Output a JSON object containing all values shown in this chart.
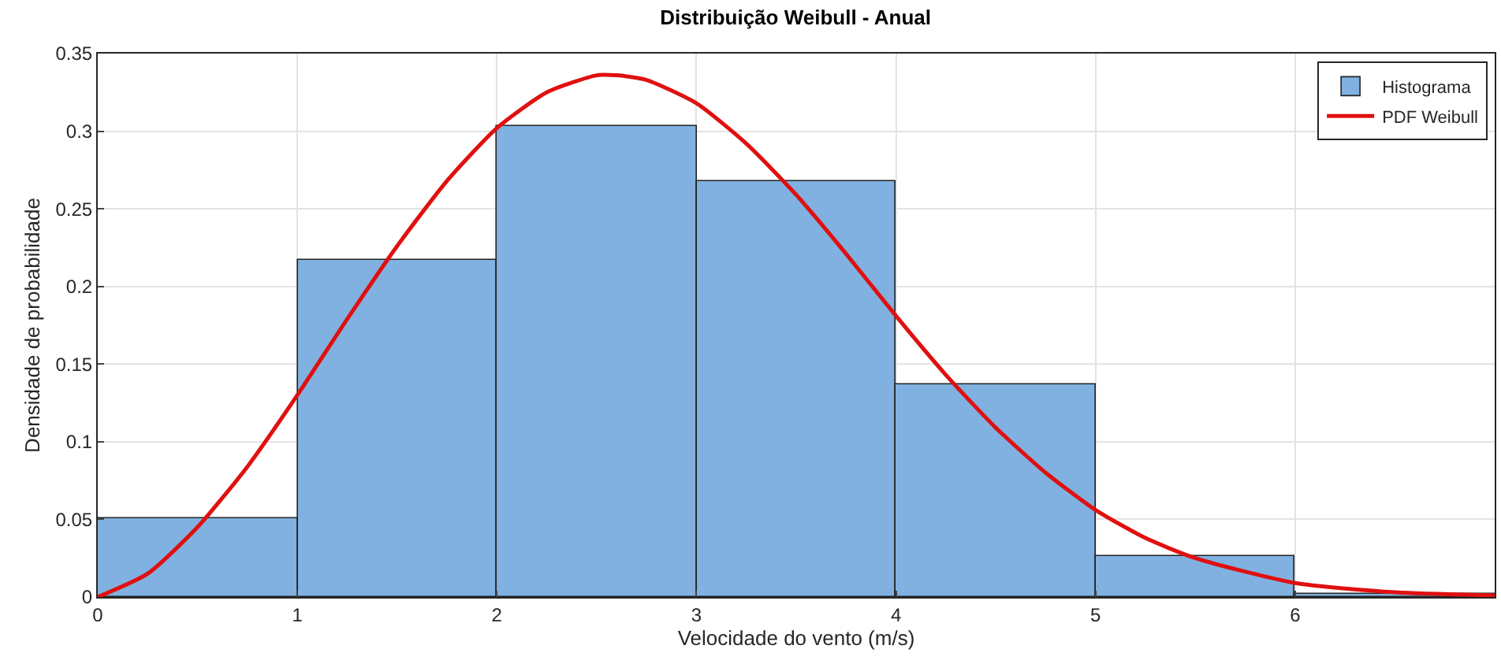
{
  "chart_data": {
    "type": "histogram",
    "title": "Distribuição Weibull - Anual",
    "xlabel": "Velocidade do vento (m/s)",
    "ylabel": "Densidade de probabilidade",
    "bins": [
      0,
      1,
      2,
      3,
      4,
      5,
      6,
      7
    ],
    "series": [
      {
        "name": "Histograma",
        "color": "#80b1e0",
        "values": [
          0.051,
          0.217,
          0.303,
          0.268,
          0.137,
          0.026,
          0.002
        ]
      },
      {
        "name": "PDF Weibull",
        "type": "line",
        "color": "#e01010",
        "x": [
          0,
          0.25,
          0.5,
          0.75,
          1,
          1.25,
          1.5,
          1.75,
          2,
          2.25,
          2.5,
          2.6,
          2.75,
          3,
          3.25,
          3.5,
          3.75,
          4,
          4.25,
          4.5,
          4.75,
          5,
          5.25,
          5.5,
          6,
          6.5,
          7
        ],
        "values": [
          0,
          0.015,
          0.045,
          0.084,
          0.13,
          0.179,
          0.226,
          0.268,
          0.302,
          0.325,
          0.336,
          0.336,
          0.333,
          0.318,
          0.292,
          0.259,
          0.221,
          0.181,
          0.143,
          0.109,
          0.08,
          0.056,
          0.038,
          0.025,
          0.009,
          0.003,
          0.001
        ]
      }
    ],
    "xlim": [
      0,
      7
    ],
    "xticks": [
      0,
      1,
      2,
      3,
      4,
      5,
      6
    ],
    "ylim": [
      0,
      0.35
    ],
    "yticks": [
      0,
      0.05,
      0.1,
      0.15,
      0.2,
      0.25,
      0.3,
      0.35
    ],
    "grid": true,
    "legend": "top right"
  }
}
